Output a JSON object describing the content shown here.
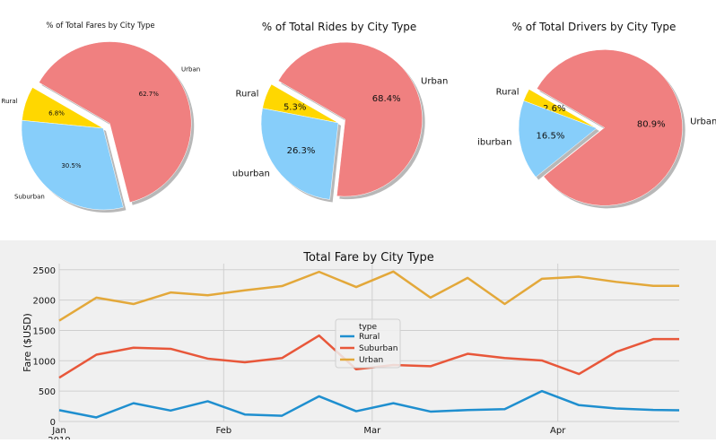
{
  "chart_data": [
    {
      "type": "pie",
      "title": "% of Total Fares by City Type",
      "categories": [
        "Rural",
        "Suburban",
        "Urban"
      ],
      "values": [
        6.8,
        30.5,
        62.7
      ],
      "value_labels": [
        "6.8%",
        "30.5%",
        "62.7%"
      ],
      "colors": [
        "#ffd700",
        "#87cefa",
        "#f08080"
      ],
      "explode": "Urban",
      "shadow": true
    },
    {
      "type": "pie",
      "title": "% of Total Rides by City Type",
      "categories": [
        "Rural",
        "Suburban",
        "Urban"
      ],
      "visible_category_labels": [
        "Rural",
        "uburban",
        "Urban"
      ],
      "values": [
        5.3,
        26.3,
        68.4
      ],
      "value_labels": [
        "5.3%",
        "26.3%",
        "68.4%"
      ],
      "colors": [
        "#ffd700",
        "#87cefa",
        "#f08080"
      ],
      "explode": "Urban",
      "shadow": true
    },
    {
      "type": "pie",
      "title": "% of Total Drivers by City Type",
      "categories": [
        "Rural",
        "Suburban",
        "Urban"
      ],
      "visible_category_labels": [
        "Rural",
        "iburban",
        "Urban"
      ],
      "values": [
        2.6,
        16.5,
        80.9
      ],
      "value_labels": [
        "2.6%",
        "16.5%",
        "80.9%"
      ],
      "colors": [
        "#ffd700",
        "#87cefa",
        "#f08080"
      ],
      "explode": "Urban",
      "shadow": true
    },
    {
      "type": "line",
      "title": "Total Fare by City Type",
      "xlabel": "",
      "ylabel": "Fare ($USD)",
      "x_tick_labels": [
        "Jan",
        "Feb",
        "Mar",
        "Apr"
      ],
      "x_tick_sub": "2019",
      "y_ticks": [
        0,
        500,
        1000,
        1500,
        2000,
        2500
      ],
      "ylim": [
        0,
        2600
      ],
      "xlim": [
        0,
        16.7
      ],
      "x_ticks_positions": [
        0,
        4.43,
        8.43,
        13.43
      ],
      "x": [
        0,
        1,
        2,
        3,
        4,
        5,
        6,
        7,
        8,
        9,
        10,
        11,
        12,
        13,
        14,
        15,
        16,
        16.7
      ],
      "legend_title": "type",
      "legend_position": "center",
      "grid": true,
      "series": [
        {
          "name": "Rural",
          "color": "#1f8fcf",
          "values": [
            187,
            67,
            301,
            180,
            333,
            115,
            95,
            415,
            169,
            301,
            163,
            188,
            203,
            501,
            269,
            215,
            190,
            185
          ]
        },
        {
          "name": "Suburban",
          "color": "#e8573a",
          "values": [
            722,
            1100,
            1215,
            1197,
            1035,
            975,
            1045,
            1415,
            860,
            930,
            910,
            1115,
            1045,
            1005,
            782,
            1145,
            1357,
            1357
          ]
        },
        {
          "name": "Urban",
          "color": "#e3a83a",
          "values": [
            1661,
            2040,
            1935,
            2125,
            2080,
            2160,
            2230,
            2465,
            2215,
            2470,
            2040,
            2365,
            1935,
            2350,
            2385,
            2300,
            2235,
            2235
          ]
        }
      ]
    }
  ]
}
